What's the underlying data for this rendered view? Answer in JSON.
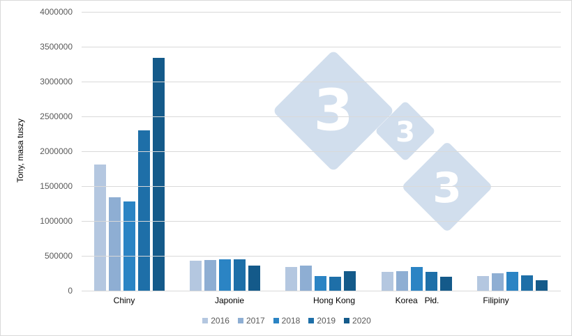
{
  "chart_data": {
    "type": "bar",
    "title": "",
    "xlabel": "",
    "ylabel": "Tony, masa tuszy",
    "ylim": [
      0,
      4000000
    ],
    "yticks": [
      "0",
      "500000",
      "1000000",
      "1500000",
      "2000000",
      "2500000",
      "3000000",
      "3500000",
      "4000000"
    ],
    "grid": true,
    "legend_position": "bottom",
    "categories": [
      "Chiny",
      "Japonie",
      "Hong Kong",
      "Korea   Płd.",
      "Filipiny"
    ],
    "series": [
      {
        "name": "2016",
        "color": "#b4c7e0",
        "values": [
          1810000,
          430000,
          340000,
          270000,
          210000
        ]
      },
      {
        "name": "2017",
        "color": "#8eaed3",
        "values": [
          1340000,
          440000,
          360000,
          280000,
          250000
        ]
      },
      {
        "name": "2018",
        "color": "#2b84c4",
        "values": [
          1280000,
          455000,
          215000,
          340000,
          275000
        ]
      },
      {
        "name": "2019",
        "color": "#1e6fa8",
        "values": [
          2300000,
          455000,
          200000,
          270000,
          220000
        ]
      },
      {
        "name": "2020",
        "color": "#145a8a",
        "values": [
          3340000,
          360000,
          280000,
          200000,
          155000
        ]
      }
    ]
  },
  "watermark": {
    "glyph": "3",
    "color": "#c5d6e8"
  }
}
